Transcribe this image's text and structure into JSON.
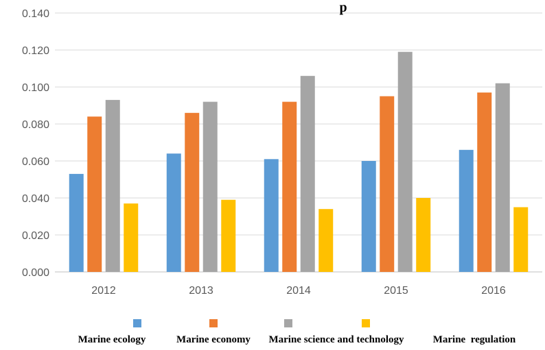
{
  "chart_data": {
    "type": "bar",
    "title": "p",
    "xlabel": "",
    "ylabel": "",
    "ylim": [
      0,
      0.14
    ],
    "yticks": [
      "0.000",
      "0.020",
      "0.040",
      "0.060",
      "0.080",
      "0.100",
      "0.120",
      "0.140"
    ],
    "grid": true,
    "legend_position": "bottom",
    "categories": [
      "2012",
      "2013",
      "2014",
      "2015",
      "2016"
    ],
    "series": [
      {
        "name": "Marine ecology",
        "color": "#5B9BD5",
        "values": [
          0.053,
          0.064,
          0.061,
          0.06,
          0.066
        ]
      },
      {
        "name": "Marine economy",
        "color": "#ED7D31",
        "values": [
          0.084,
          0.086,
          0.092,
          0.095,
          0.097
        ]
      },
      {
        "name": "Marine science and technology",
        "color": "#A5A5A5",
        "values": [
          0.093,
          0.092,
          0.106,
          0.119,
          0.102
        ]
      },
      {
        "name": "Marine  regulation",
        "color": "#FFC000",
        "values": [
          0.037,
          0.039,
          0.034,
          0.04,
          0.035
        ]
      }
    ]
  }
}
